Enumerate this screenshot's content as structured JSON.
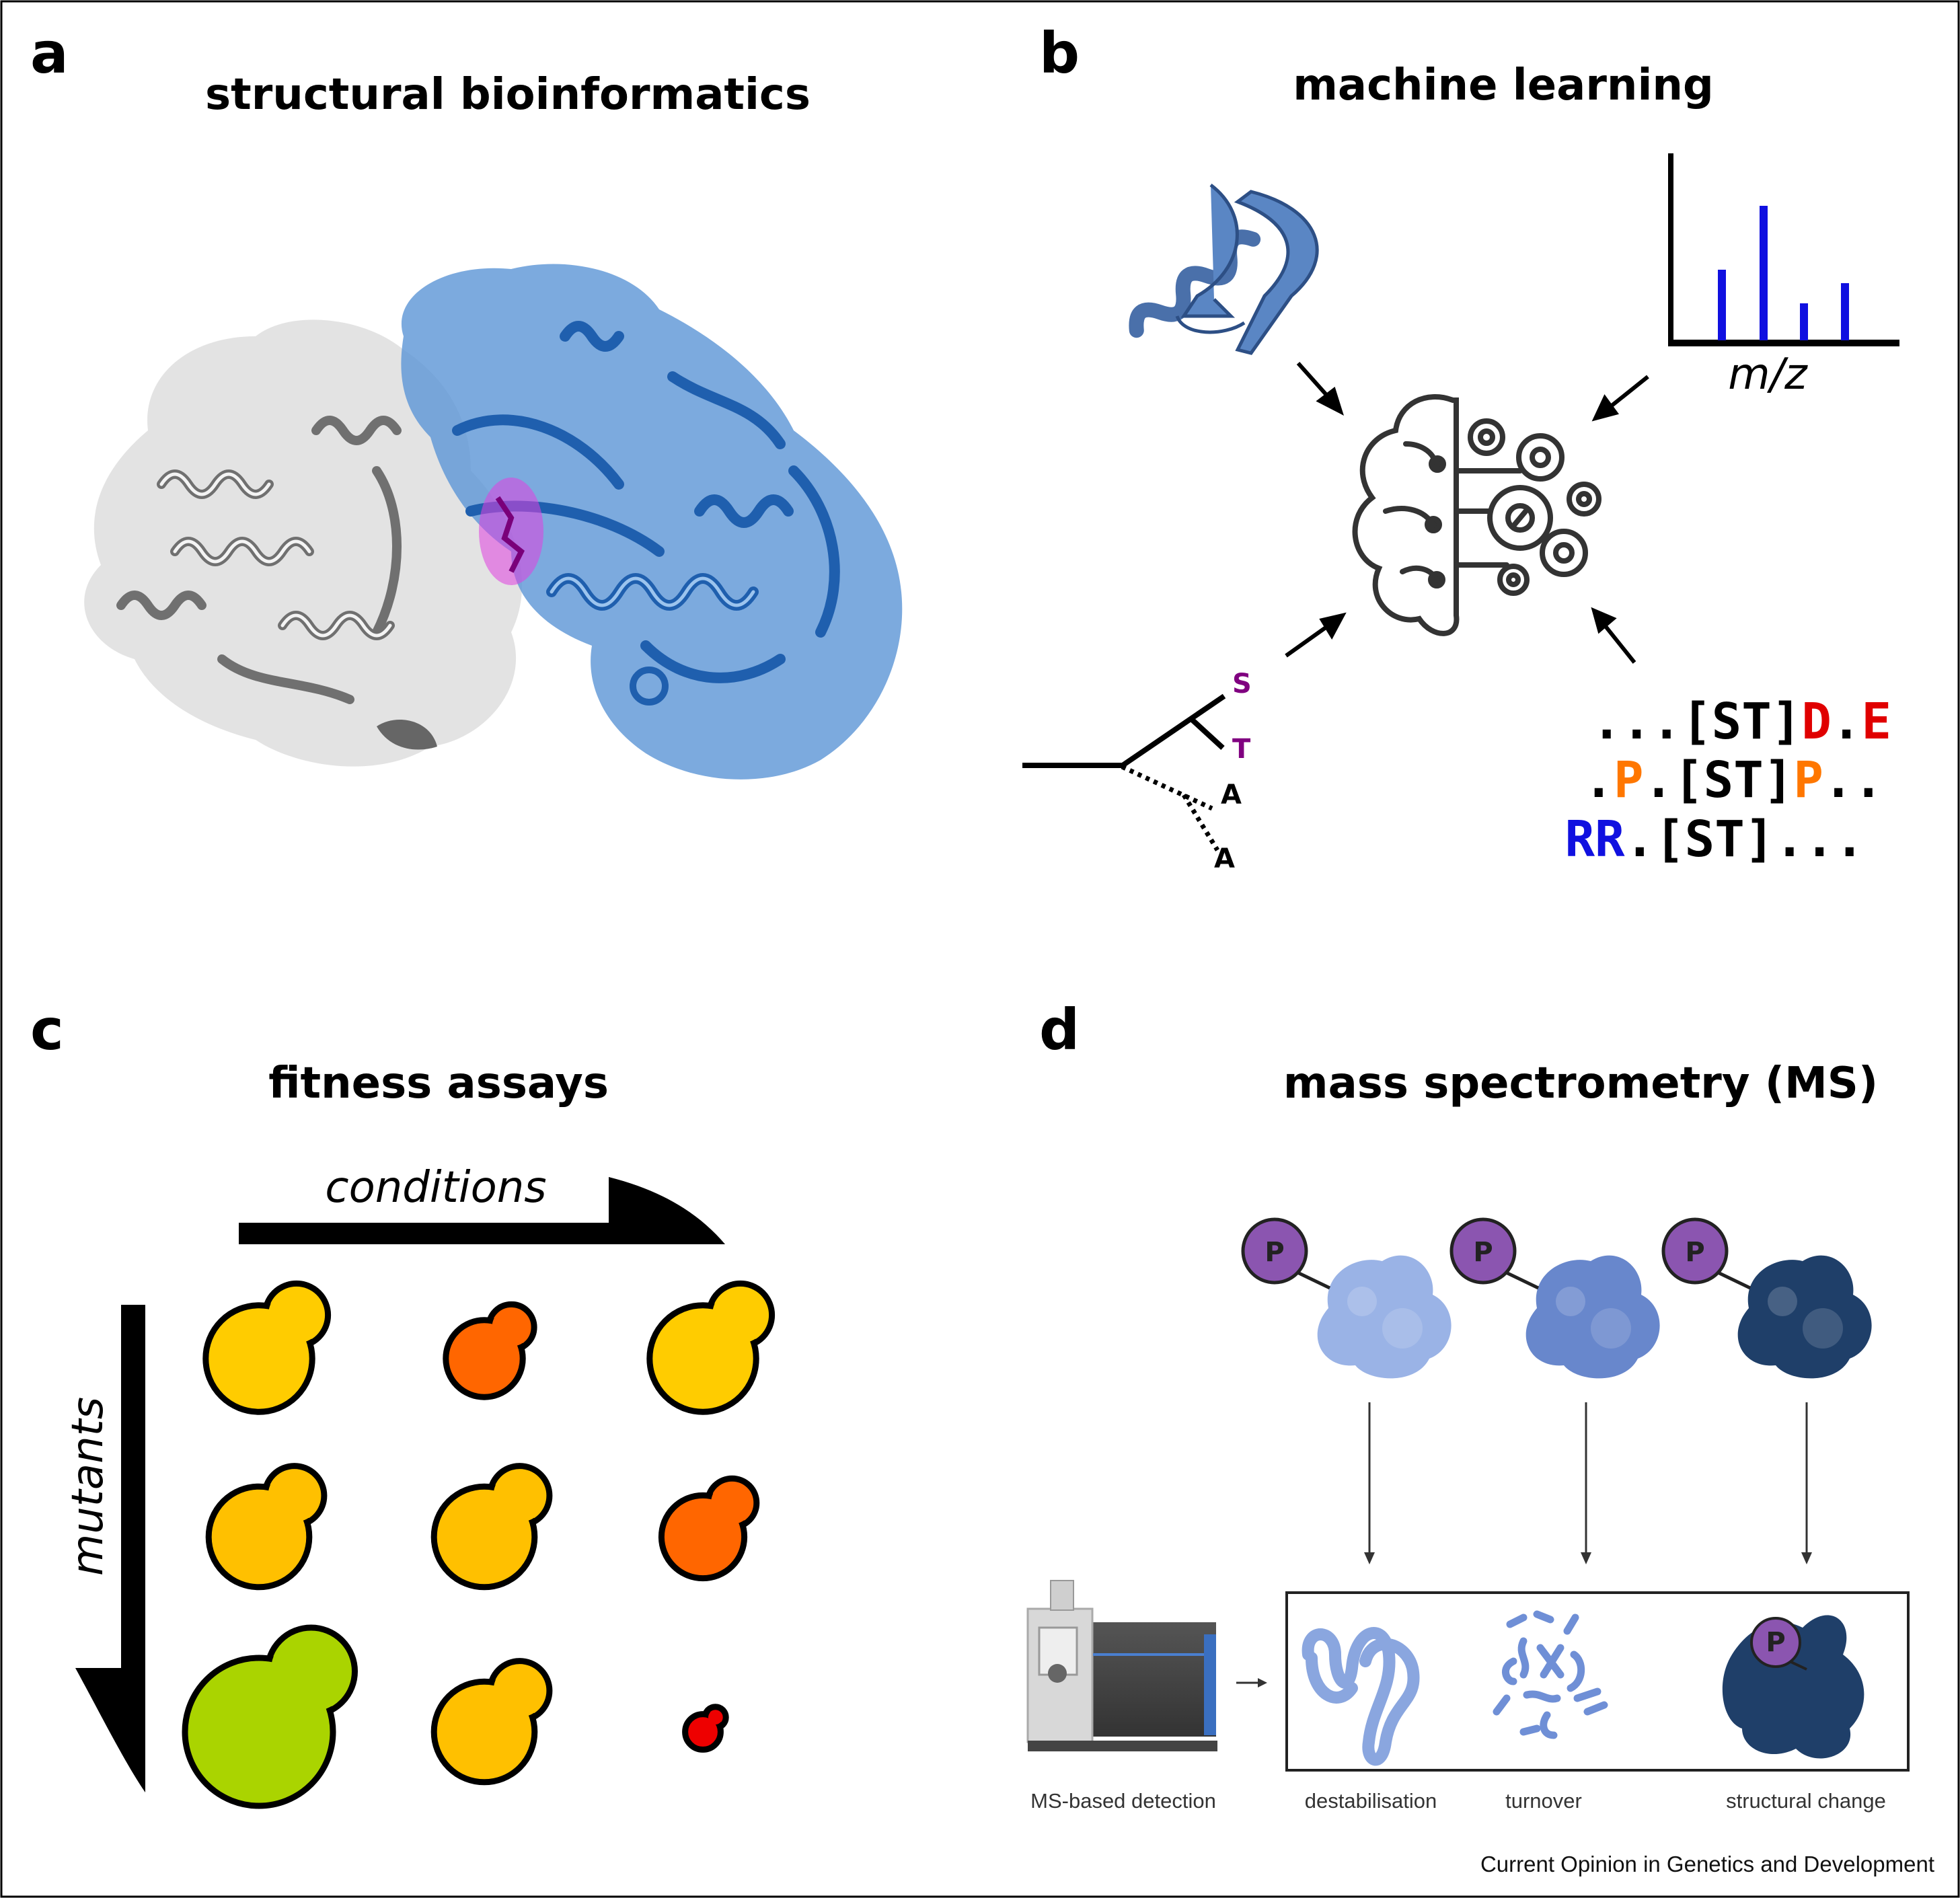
{
  "panels": {
    "a": {
      "letter": "a",
      "title": "structural bioinformatics"
    },
    "b": {
      "letter": "b",
      "title": "machine learning",
      "spectrum_axis_label": "m/z",
      "spectrum_peaks": [
        0.42,
        0.8,
        0.22,
        0.34
      ],
      "spectrum_color": "#1010e0",
      "tree_labels": [
        {
          "text": "S",
          "color": "#800080"
        },
        {
          "text": "T",
          "color": "#800080"
        },
        {
          "text": "A",
          "color": "#000000"
        },
        {
          "text": "A",
          "color": "#000000"
        }
      ],
      "motif_lines": [
        [
          {
            "t": "...[ST]",
            "c": "#000000"
          },
          {
            "t": "D",
            "c": "#e00000"
          },
          {
            "t": ".",
            "c": "#000000"
          },
          {
            "t": "E",
            "c": "#e00000"
          }
        ],
        [
          {
            "t": ".",
            "c": "#000000"
          },
          {
            "t": "P",
            "c": "#ff7700"
          },
          {
            "t": ".[ST]",
            "c": "#000000"
          },
          {
            "t": "P",
            "c": "#ff7700"
          },
          {
            "t": "..",
            "c": "#000000"
          }
        ],
        [
          {
            "t": "RR",
            "c": "#1010e0"
          },
          {
            "t": ".[ST]...",
            "c": "#000000"
          }
        ]
      ]
    },
    "c": {
      "letter": "c",
      "title": "fitness assays",
      "x_arrow_label": "conditions",
      "y_arrow_label": "mutants",
      "cells": [
        {
          "row": 0,
          "col": 0,
          "color": "#ffcc00",
          "scale": 0.9
        },
        {
          "row": 0,
          "col": 1,
          "color": "#ff6600",
          "scale": 0.65
        },
        {
          "row": 0,
          "col": 2,
          "color": "#ffcc00",
          "scale": 0.9
        },
        {
          "row": 1,
          "col": 0,
          "color": "#ffc000",
          "scale": 0.85
        },
        {
          "row": 1,
          "col": 1,
          "color": "#ffc000",
          "scale": 0.85
        },
        {
          "row": 1,
          "col": 2,
          "color": "#ff6600",
          "scale": 0.7
        },
        {
          "row": 2,
          "col": 0,
          "color": "#aad400",
          "scale": 1.25
        },
        {
          "row": 2,
          "col": 1,
          "color": "#ffc000",
          "scale": 0.85
        },
        {
          "row": 2,
          "col": 2,
          "color": "#ee0000",
          "scale": 0.3
        }
      ]
    },
    "d": {
      "letter": "d",
      "title": "mass spectrometry (MS)",
      "phospho_label": "P",
      "proteins": [
        {
          "color": "#9ab3e6"
        },
        {
          "color": "#6887cc"
        },
        {
          "color": "#1f3f69"
        }
      ],
      "detection_label": "MS-based detection",
      "outcome_labels": [
        "destabilisation",
        "turnover",
        "structural change"
      ],
      "credit": "Current Opinion in Genetics and Development"
    }
  }
}
